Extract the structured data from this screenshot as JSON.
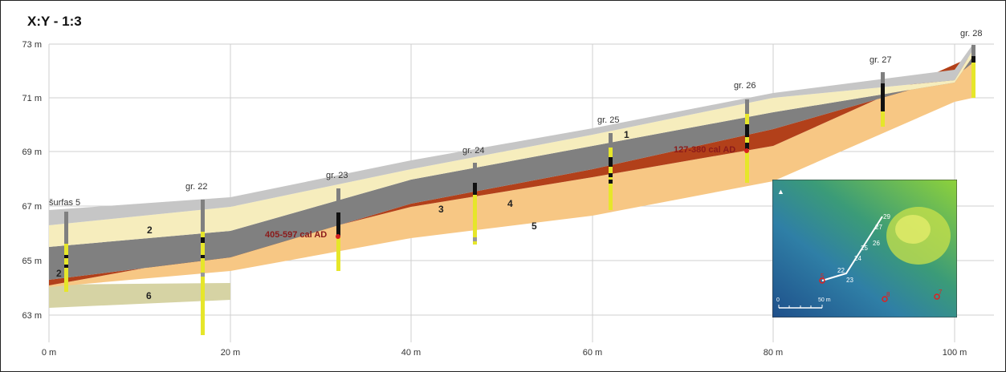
{
  "title": "X:Y - 1:3",
  "x_ticks": [
    "0 m",
    "20 m",
    "40 m",
    "60 m",
    "80 m",
    "100 m"
  ],
  "y_ticks": [
    "73 m",
    "71 m",
    "69 m",
    "67 m",
    "65 m",
    "63 m"
  ],
  "boreholes": [
    "šurfas 5",
    "gr. 22",
    "gr. 23",
    "gr. 24",
    "gr. 25",
    "gr. 26",
    "gr. 27",
    "gr. 28"
  ],
  "layer_labels": [
    "1",
    "2",
    "2",
    "3",
    "4",
    "5",
    "6"
  ],
  "dates": [
    "405-597 cal AD",
    "127-380 cal AD"
  ],
  "inset": {
    "labels": [
      "29",
      "27",
      "26",
      "25",
      "24",
      "23",
      "22",
      "5",
      "8",
      "7"
    ],
    "scale_start": "0",
    "scale_end": "50 m"
  },
  "colors": {
    "layer1": "#c6c6c6",
    "layer2": "#f6edbd",
    "layer3": "#808080",
    "layer4": "#b2401a",
    "layer5": "#f7c784",
    "layer6": "#d6d3a4",
    "date_text": "#8b1a1a"
  }
}
